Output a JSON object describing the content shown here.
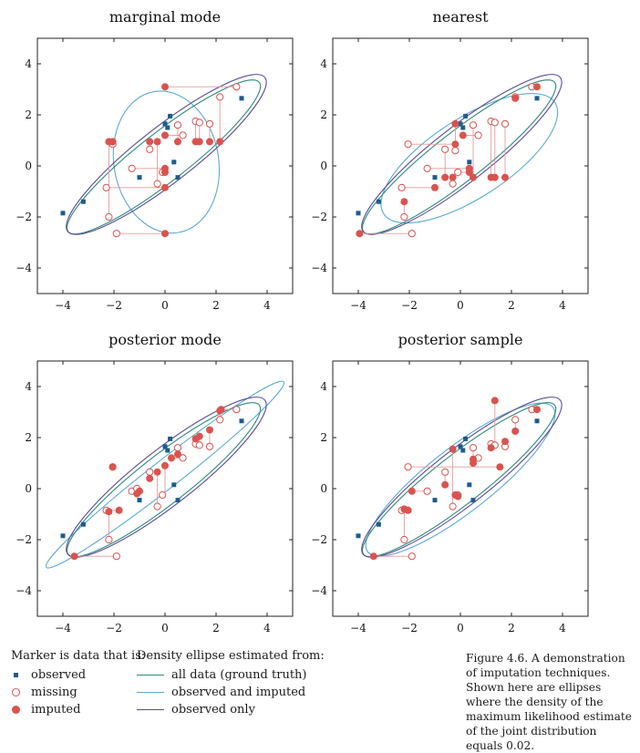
{
  "chart_data": [
    {
      "type": "scatter",
      "title": "marginal mode",
      "xlim": [
        -5,
        5
      ],
      "ylim": [
        -5,
        5
      ],
      "xticks": [
        "−4",
        "−2",
        "0",
        "2",
        "4"
      ],
      "yticks": [
        "4",
        "2",
        "0",
        "−2",
        "−4"
      ],
      "observed": [
        [
          -4,
          -1.85
        ],
        [
          -3.2,
          -1.4
        ],
        [
          -1,
          -0.45
        ],
        [
          0,
          1.65
        ],
        [
          0.1,
          1.5
        ],
        [
          0.2,
          1.95
        ],
        [
          0.35,
          0.15
        ],
        [
          0.5,
          -0.45
        ],
        [
          3,
          2.65
        ]
      ],
      "pairs": [
        {
          "missing": [
            -1.9,
            -2.65
          ],
          "imputed": [
            0,
            -2.65
          ]
        },
        {
          "missing": [
            -2.2,
            -2.0
          ],
          "imputed": [
            -2.2,
            0.95
          ]
        },
        {
          "missing": [
            -2.3,
            -0.85
          ],
          "imputed": [
            0,
            -0.85
          ]
        },
        {
          "missing": [
            -1.3,
            -0.1
          ],
          "imputed": [
            0,
            -0.1
          ]
        },
        {
          "missing": [
            -0.3,
            -0.7
          ],
          "imputed": [
            -0.3,
            0.95
          ]
        },
        {
          "missing": [
            -0.1,
            -0.25
          ],
          "imputed": [
            0,
            -0.25
          ]
        },
        {
          "missing": [
            0.5,
            1.6
          ],
          "imputed": [
            0.5,
            0.95
          ]
        },
        {
          "missing": [
            0.7,
            1.2
          ],
          "imputed": [
            0,
            1.2
          ]
        },
        {
          "missing": [
            -0.6,
            0.65
          ],
          "imputed": [
            -0.6,
            0.95
          ]
        },
        {
          "missing": [
            1.2,
            1.75
          ],
          "imputed": [
            1.2,
            0.95
          ]
        },
        {
          "missing": [
            1.35,
            1.7
          ],
          "imputed": [
            1.35,
            0.95
          ]
        },
        {
          "missing": [
            1.75,
            1.65
          ],
          "imputed": [
            1.75,
            0.95
          ]
        },
        {
          "missing": [
            2.15,
            2.7
          ],
          "imputed": [
            2.15,
            0.95
          ]
        },
        {
          "missing": [
            2.8,
            3.1
          ],
          "imputed": [
            0,
            3.1
          ]
        },
        {
          "missing": [
            -2.05,
            0.85
          ],
          "imputed": [
            -2.05,
            0.95
          ]
        }
      ],
      "ellipses": {
        "all_data": {
          "cx": -0.05,
          "cy": 0.35,
          "rx": 4.75,
          "ry": 0.95,
          "angle_deg": 38
        },
        "observed_and_imputed": {
          "cx": 0.05,
          "cy": 0.15,
          "rx": 2.8,
          "ry": 2.05,
          "angle_deg": 100
        },
        "observed_only": {
          "cx": 0.05,
          "cy": 0.45,
          "rx": 4.9,
          "ry": 1.08,
          "angle_deg": 38
        }
      }
    },
    {
      "type": "scatter",
      "title": "nearest",
      "xlim": [
        -5,
        5
      ],
      "ylim": [
        -5,
        5
      ],
      "xticks": [
        "−4",
        "−2",
        "0",
        "2",
        "4"
      ],
      "yticks": [
        "4",
        "2",
        "0",
        "−2",
        "−4"
      ],
      "observed": [
        [
          -4,
          -1.85
        ],
        [
          -3.2,
          -1.4
        ],
        [
          -1,
          -0.45
        ],
        [
          0,
          1.65
        ],
        [
          0.1,
          1.5
        ],
        [
          0.2,
          1.95
        ],
        [
          0.35,
          0.15
        ],
        [
          0.5,
          -0.45
        ],
        [
          3,
          2.65
        ]
      ],
      "pairs": [
        {
          "missing": [
            -1.9,
            -2.65
          ],
          "imputed": [
            -3.95,
            -2.65
          ]
        },
        {
          "missing": [
            -2.2,
            -2.0
          ],
          "imputed": [
            -2.2,
            -1.4
          ]
        },
        {
          "missing": [
            -2.3,
            -0.85
          ],
          "imputed": [
            -1.0,
            -0.85
          ]
        },
        {
          "missing": [
            -1.3,
            -0.1
          ],
          "imputed": [
            0.35,
            -0.1
          ]
        },
        {
          "missing": [
            -0.3,
            -0.7
          ],
          "imputed": [
            -0.3,
            -0.45
          ]
        },
        {
          "missing": [
            -0.1,
            -0.25
          ],
          "imputed": [
            0.35,
            -0.25
          ]
        },
        {
          "missing": [
            0.5,
            1.6
          ],
          "imputed": [
            0.5,
            -0.45
          ]
        },
        {
          "missing": [
            0.7,
            1.2
          ],
          "imputed": [
            0.1,
            1.2
          ]
        },
        {
          "missing": [
            -0.6,
            0.65
          ],
          "imputed": [
            -0.6,
            -0.45
          ]
        },
        {
          "missing": [
            1.2,
            1.75
          ],
          "imputed": [
            1.2,
            -0.45
          ]
        },
        {
          "missing": [
            1.35,
            1.7
          ],
          "imputed": [
            1.35,
            -0.45
          ]
        },
        {
          "missing": [
            1.75,
            1.65
          ],
          "imputed": [
            1.75,
            -0.45
          ]
        },
        {
          "missing": [
            2.15,
            2.7
          ],
          "imputed": [
            2.15,
            2.65
          ]
        },
        {
          "missing": [
            2.8,
            3.1
          ],
          "imputed": [
            3.0,
            3.1
          ]
        },
        {
          "missing": [
            -2.05,
            0.85
          ],
          "imputed": [
            -0.2,
            0.85
          ]
        },
        {
          "missing": [
            -0.2,
            0.6
          ],
          "imputed": [
            -0.2,
            1.65
          ]
        }
      ],
      "ellipses": {
        "all_data": {
          "cx": -0.05,
          "cy": 0.35,
          "rx": 4.75,
          "ry": 0.95,
          "angle_deg": 38
        },
        "observed_and_imputed": {
          "cx": 0.35,
          "cy": 0.3,
          "rx": 4.0,
          "ry": 1.55,
          "angle_deg": 33
        },
        "observed_only": {
          "cx": 0.05,
          "cy": 0.45,
          "rx": 4.9,
          "ry": 1.08,
          "angle_deg": 38
        }
      }
    },
    {
      "type": "scatter",
      "title": "posterior mode",
      "xlim": [
        -5,
        5
      ],
      "ylim": [
        -5,
        5
      ],
      "xticks": [
        "−4",
        "−2",
        "0",
        "2",
        "4"
      ],
      "yticks": [
        "4",
        "2",
        "0",
        "−2",
        "−4"
      ],
      "observed": [
        [
          -4,
          -1.85
        ],
        [
          -3.2,
          -1.4
        ],
        [
          -1,
          -0.45
        ],
        [
          0,
          1.65
        ],
        [
          0.1,
          1.5
        ],
        [
          0.2,
          1.95
        ],
        [
          0.35,
          0.15
        ],
        [
          0.5,
          -0.45
        ],
        [
          3,
          2.65
        ]
      ],
      "pairs": [
        {
          "missing": [
            -1.9,
            -2.65
          ],
          "imputed": [
            -3.55,
            -2.65
          ]
        },
        {
          "missing": [
            -2.2,
            -2.0
          ],
          "imputed": [
            -2.2,
            -0.9
          ]
        },
        {
          "missing": [
            -2.3,
            -0.85
          ],
          "imputed": [
            -1.8,
            -0.85
          ]
        },
        {
          "missing": [
            -1.3,
            -0.1
          ],
          "imputed": [
            -1.0,
            -0.1
          ]
        },
        {
          "missing": [
            -0.3,
            -0.7
          ],
          "imputed": [
            -0.3,
            0.65
          ]
        },
        {
          "missing": [
            -0.1,
            -0.25
          ],
          "imputed": [
            0.0,
            0.9
          ]
        },
        {
          "missing": [
            0.5,
            1.6
          ],
          "imputed": [
            0.5,
            1.35
          ]
        },
        {
          "missing": [
            0.7,
            1.2
          ],
          "imputed": [
            0.25,
            1.2
          ]
        },
        {
          "missing": [
            -0.6,
            0.65
          ],
          "imputed": [
            -0.6,
            0.4
          ]
        },
        {
          "missing": [
            1.2,
            1.75
          ],
          "imputed": [
            1.2,
            1.95
          ]
        },
        {
          "missing": [
            1.35,
            1.7
          ],
          "imputed": [
            1.35,
            2.05
          ]
        },
        {
          "missing": [
            1.75,
            1.65
          ],
          "imputed": [
            1.75,
            2.3
          ]
        },
        {
          "missing": [
            2.15,
            2.7
          ],
          "imputed": [
            2.15,
            3.05
          ]
        },
        {
          "missing": [
            2.8,
            3.1
          ],
          "imputed": [
            2.2,
            3.1
          ]
        },
        {
          "missing": [
            -2.05,
            0.85
          ],
          "imputed": [
            -2.05,
            0.85
          ]
        },
        {
          "missing": [
            -1.1,
            0.0
          ],
          "imputed": [
            -1.1,
            -0.2
          ]
        }
      ],
      "ellipses": {
        "all_data": {
          "cx": -0.05,
          "cy": 0.35,
          "rx": 4.75,
          "ry": 0.95,
          "angle_deg": 38
        },
        "observed_and_imputed": {
          "cx": 0.0,
          "cy": 0.55,
          "rx": 5.9,
          "ry": 0.55,
          "angle_deg": 38
        },
        "observed_only": {
          "cx": 0.05,
          "cy": 0.45,
          "rx": 4.9,
          "ry": 1.08,
          "angle_deg": 38
        }
      }
    },
    {
      "type": "scatter",
      "title": "posterior sample",
      "xlim": [
        -5,
        5
      ],
      "ylim": [
        -5,
        5
      ],
      "xticks": [
        "−4",
        "−2",
        "0",
        "2",
        "4"
      ],
      "yticks": [
        "4",
        "2",
        "0",
        "−2",
        "−4"
      ],
      "observed": [
        [
          -4,
          -1.85
        ],
        [
          -3.2,
          -1.4
        ],
        [
          -1,
          -0.45
        ],
        [
          0,
          1.65
        ],
        [
          0.1,
          1.5
        ],
        [
          0.2,
          1.95
        ],
        [
          0.35,
          0.15
        ],
        [
          0.5,
          -0.45
        ],
        [
          3,
          2.65
        ]
      ],
      "pairs": [
        {
          "missing": [
            -1.9,
            -2.65
          ],
          "imputed": [
            -3.4,
            -2.65
          ]
        },
        {
          "missing": [
            -2.2,
            -2.0
          ],
          "imputed": [
            -2.2,
            -0.8
          ]
        },
        {
          "missing": [
            -2.3,
            -0.85
          ],
          "imputed": [
            -2.05,
            -0.85
          ]
        },
        {
          "missing": [
            -1.3,
            -0.1
          ],
          "imputed": [
            -1.9,
            -0.1
          ]
        },
        {
          "missing": [
            -0.3,
            -0.7
          ],
          "imputed": [
            -0.3,
            1.55
          ]
        },
        {
          "missing": [
            -0.1,
            -0.25
          ],
          "imputed": [
            -0.2,
            -0.25
          ]
        },
        {
          "missing": [
            0.5,
            1.6
          ],
          "imputed": [
            0.5,
            1.15
          ]
        },
        {
          "missing": [
            0.7,
            1.2
          ],
          "imputed": [
            0.5,
            1.0
          ]
        },
        {
          "missing": [
            -0.6,
            0.65
          ],
          "imputed": [
            -0.6,
            0.15
          ]
        },
        {
          "missing": [
            1.2,
            1.75
          ],
          "imputed": [
            1.2,
            1.6
          ]
        },
        {
          "missing": [
            1.35,
            1.7
          ],
          "imputed": [
            1.35,
            3.45
          ]
        },
        {
          "missing": [
            1.75,
            1.65
          ],
          "imputed": [
            1.75,
            1.85
          ]
        },
        {
          "missing": [
            2.15,
            2.7
          ],
          "imputed": [
            2.15,
            2.25
          ]
        },
        {
          "missing": [
            2.8,
            3.1
          ],
          "imputed": [
            3.0,
            3.1
          ]
        },
        {
          "missing": [
            -2.05,
            0.85
          ],
          "imputed": [
            1.55,
            0.85
          ]
        },
        {
          "missing": [
            -0.1,
            -0.3
          ],
          "imputed": [
            -0.1,
            -0.3
          ]
        }
      ],
      "ellipses": {
        "all_data": {
          "cx": -0.05,
          "cy": 0.35,
          "rx": 4.75,
          "ry": 0.95,
          "angle_deg": 38
        },
        "observed_and_imputed": {
          "cx": 0.0,
          "cy": 0.35,
          "rx": 4.6,
          "ry": 1.25,
          "angle_deg": 38
        },
        "observed_only": {
          "cx": 0.05,
          "cy": 0.45,
          "rx": 4.9,
          "ry": 1.08,
          "angle_deg": 38
        }
      }
    }
  ],
  "colors": {
    "observed": "#1f5b8d",
    "missing_imputed": "#d9534f",
    "link": "#e59a98",
    "all_data": "#2e8b7a",
    "observed_and_imputed": "#5aaad4",
    "observed_only": "#5b4a9a"
  },
  "legend": {
    "marker_header": "Marker is data that is:",
    "observed": "observed",
    "missing": "missing",
    "imputed": "imputed",
    "ellipse_header": "Density ellipse estimated from:",
    "all_data": "all data (ground truth)",
    "observed_and_imputed": "observed and imputed",
    "observed_only": "observed only"
  },
  "caption": "Figure 4.6. A demonstration of imputation techniques. Shown here are ellipses where the density of the maximum likelihood estimate of the joint distribution equals 0.02."
}
